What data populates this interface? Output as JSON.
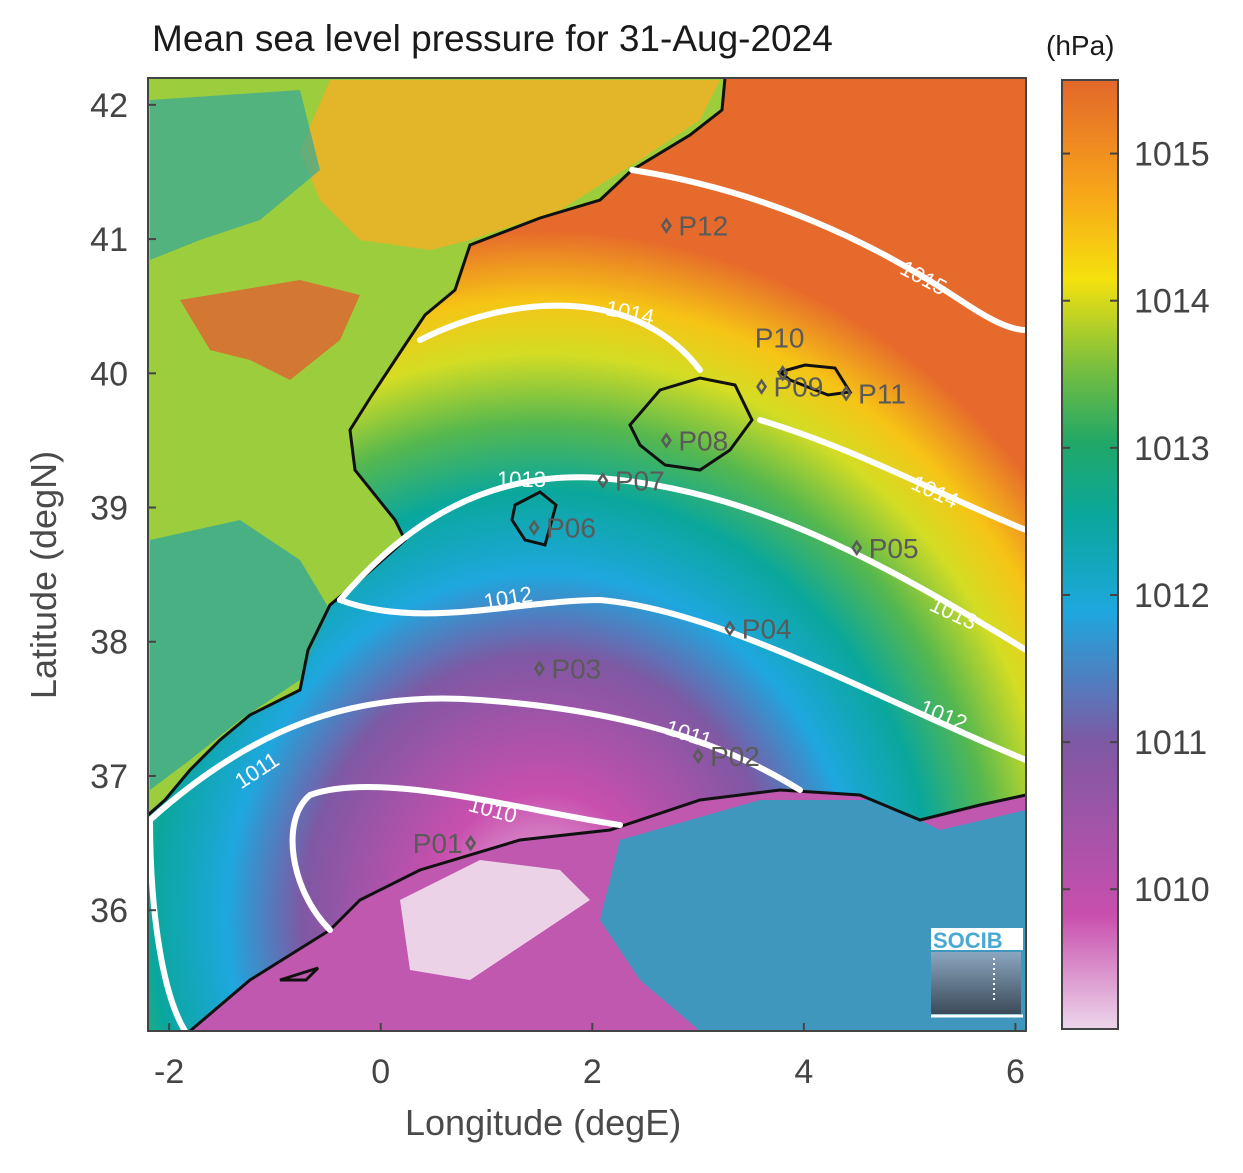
{
  "title": "Mean sea level pressure for 31-Aug-2024",
  "colorbar": {
    "unit": "(hPa)",
    "ticks": [
      "1015",
      "1014",
      "1013",
      "1012",
      "1011",
      "1010"
    ],
    "colors": [
      "#e7d5e5",
      "#c94fae",
      "#7f58a3",
      "#1ea7de",
      "#0aa79c",
      "#49b653",
      "#c8db2a",
      "#f6e20e",
      "#f7a619",
      "#e66a2b"
    ]
  },
  "axes": {
    "xlabel": "Longitude (degE)",
    "ylabel": "Latitude (degN)",
    "xticks": [
      "-2",
      "0",
      "2",
      "4",
      "6"
    ],
    "yticks": [
      "42",
      "41",
      "40",
      "39",
      "38",
      "37",
      "36"
    ],
    "xlim": [
      -2.2,
      6.1
    ],
    "ylim": [
      35.1,
      42.2
    ]
  },
  "isobar_labels": [
    "1015",
    "1014",
    "1014",
    "1013",
    "1013",
    "1012",
    "1012",
    "1011",
    "1011",
    "1010"
  ],
  "stations": [
    {
      "id": "P01",
      "lon": 0.85,
      "lat": 36.5
    },
    {
      "id": "P02",
      "lon": 3.0,
      "lat": 37.15
    },
    {
      "id": "P03",
      "lon": 1.5,
      "lat": 37.8
    },
    {
      "id": "P04",
      "lon": 3.3,
      "lat": 38.1
    },
    {
      "id": "P05",
      "lon": 4.5,
      "lat": 38.7
    },
    {
      "id": "P06",
      "lon": 1.45,
      "lat": 38.85
    },
    {
      "id": "P07",
      "lon": 2.1,
      "lat": 39.2
    },
    {
      "id": "P08",
      "lon": 2.7,
      "lat": 39.5
    },
    {
      "id": "P09",
      "lon": 3.6,
      "lat": 39.9
    },
    {
      "id": "P10",
      "lon": 3.8,
      "lat": 40.0
    },
    {
      "id": "P11",
      "lon": 4.4,
      "lat": 39.85
    },
    {
      "id": "P12",
      "lon": 2.7,
      "lat": 41.1
    }
  ],
  "logo": "SOCIB"
}
